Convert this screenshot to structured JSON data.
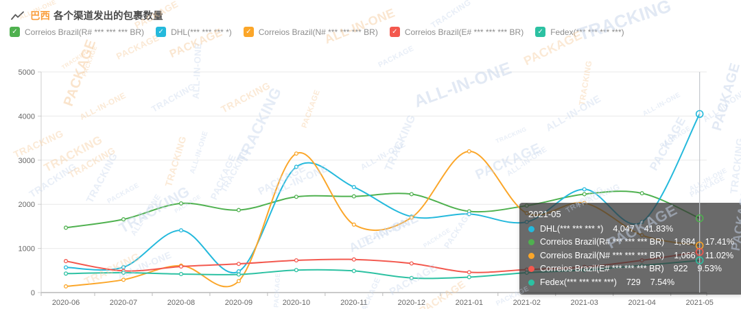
{
  "header": {
    "region": "巴西",
    "title": "各个渠道发出的包裹数量"
  },
  "legend": [
    {
      "label": "Correios Brazil(R# *** *** *** BR)",
      "color": "#4fb14f"
    },
    {
      "label": "DHL(*** *** *** *)",
      "color": "#24b9dc"
    },
    {
      "label": "Correios Brazil(N# *** *** *** BR)",
      "color": "#fba629"
    },
    {
      "label": "Correios Brazil(E# *** *** *** BR)",
      "color": "#f3584e"
    },
    {
      "label": "Fedex(*** *** *** ***)",
      "color": "#2cc1a2"
    }
  ],
  "chart_data": {
    "type": "line",
    "smooth": true,
    "grid": true,
    "legend_position": "top",
    "title": "巴西 各个渠道发出的包裹数量",
    "xlabel": "",
    "ylabel": "",
    "ylim": [
      0,
      5000
    ],
    "yticks": [
      "0",
      "1000",
      "2000",
      "3000",
      "4000",
      "5000"
    ],
    "x": [
      "2020-06",
      "2020-07",
      "2020-08",
      "2020-09",
      "2020-10",
      "2020-11",
      "2020-12",
      "2021-01",
      "2021-02",
      "2021-03",
      "2021-04",
      "2021-05"
    ],
    "series": [
      {
        "name": "Correios Brazil(R# *** *** *** BR)",
        "color": "#4fb14f",
        "values": [
          1470,
          1660,
          2020,
          1870,
          2170,
          2180,
          2230,
          1840,
          1970,
          2230,
          2250,
          1684
        ]
      },
      {
        "name": "DHL(*** *** *** *)",
        "color": "#24b9dc",
        "values": [
          570,
          575,
          1410,
          480,
          2850,
          2390,
          1720,
          1780,
          1600,
          2340,
          1600,
          4047
        ]
      },
      {
        "name": "Correios Brazil(N# *** *** *** BR)",
        "color": "#fba629",
        "values": [
          140,
          290,
          610,
          260,
          3150,
          1540,
          1700,
          3200,
          1800,
          2030,
          1300,
          1066
        ]
      },
      {
        "name": "Correios Brazil(E# *** *** *** BR)",
        "color": "#f3584e",
        "values": [
          713,
          490,
          590,
          650,
          730,
          750,
          660,
          460,
          520,
          580,
          730,
          922
        ]
      },
      {
        "name": "Fedex(*** *** *** ***)",
        "color": "#2cc1a2",
        "values": [
          430,
          450,
          420,
          410,
          510,
          490,
          330,
          350,
          450,
          510,
          615,
          729
        ]
      }
    ],
    "pointer_x": "2021-05"
  },
  "tooltip": {
    "title": "2021-05",
    "rows": [
      {
        "name": "DHL(*** *** *** *)",
        "value": "4,047",
        "pct": "41.83%",
        "color": "#24b9dc"
      },
      {
        "name": "Correios Brazil(R# *** *** *** BR)",
        "value": "1,684",
        "pct": "17.41%",
        "color": "#4fb14f"
      },
      {
        "name": "Correios Brazil(N# *** *** *** BR)",
        "value": "1,066",
        "pct": "11.02%",
        "color": "#fba629"
      },
      {
        "name": "Correios Brazil(E# *** *** *** BR)",
        "value": "922",
        "pct": "9.53%",
        "color": "#f3584e"
      },
      {
        "name": "Fedex(*** *** *** ***)",
        "value": "729",
        "pct": "7.54%",
        "color": "#2cc1a2"
      }
    ]
  },
  "watermark": {
    "words": [
      "PACKAGE",
      "TRACKING",
      "ALL-IN-ONE"
    ]
  }
}
